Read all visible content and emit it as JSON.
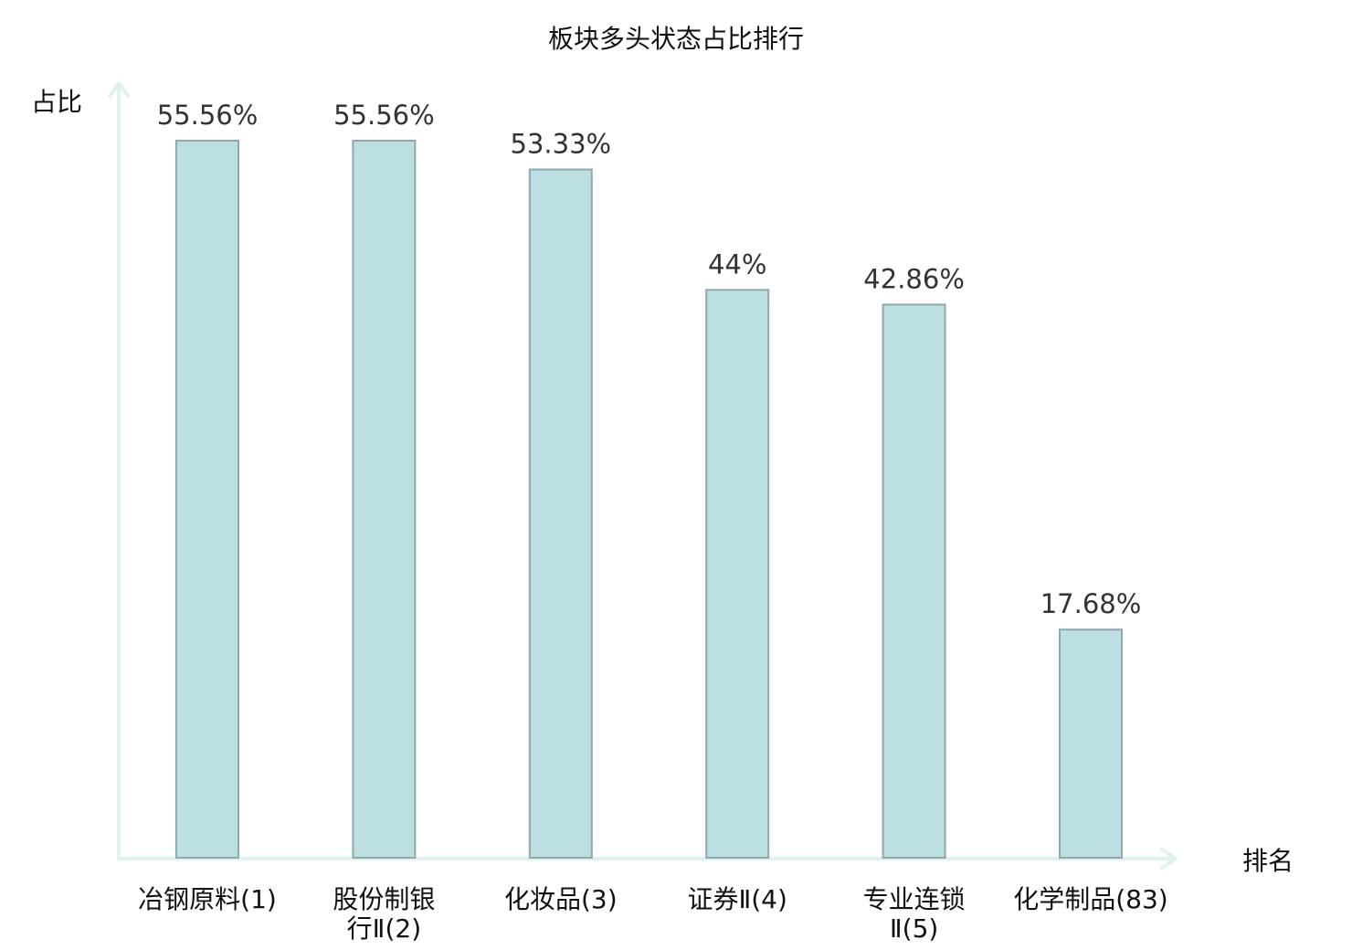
{
  "chart_data": {
    "type": "bar",
    "title": "板块多头状态占比排行",
    "ylabel": "占比",
    "xlabel": "排名",
    "ylim": [
      0,
      60
    ],
    "categories": [
      [
        "冶钢原料(1)"
      ],
      [
        "股份制银",
        "行Ⅱ(2)"
      ],
      [
        "化妆品(3)"
      ],
      [
        "证券Ⅱ(4)"
      ],
      [
        "专业连锁",
        "Ⅱ(5)"
      ],
      [
        "化学制品(83)"
      ]
    ],
    "values": [
      55.56,
      55.56,
      53.33,
      44,
      42.86,
      17.68
    ],
    "value_labels": [
      "55.56%",
      "55.56%",
      "53.33%",
      "44%",
      "42.86%",
      "17.68%"
    ],
    "highlight_index": 5,
    "grid": false,
    "colors": {
      "bar_fill": "#bce0e2",
      "bar_stroke": "#8fa9ab",
      "axis": "#dff1ef",
      "highlight_text": "#d40000",
      "text": "#111111",
      "value_text": "#333333"
    }
  }
}
